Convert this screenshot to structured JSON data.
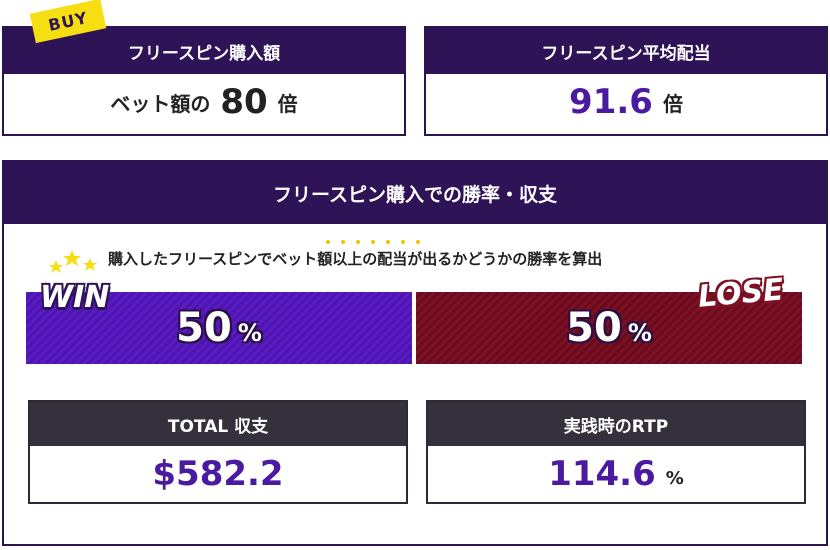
{
  "buy_card": {
    "badge": "BUY",
    "title": "フリースピン購入額",
    "label": "ベット額の",
    "value": "80",
    "unit": "倍"
  },
  "avg_card": {
    "title": "フリースピン平均配当",
    "value": "91.6",
    "unit": "倍"
  },
  "win_section": {
    "title": "フリースピン購入での勝率・収支",
    "subtitle": "購入したフリースピンでベット額以上の配当が出るかどうかの勝率を算出",
    "win": {
      "label": "WIN",
      "value": "50",
      "unit": "%"
    },
    "lose": {
      "label": "LOSE",
      "value": "50",
      "unit": "%"
    }
  },
  "total_card": {
    "title": "TOTAL 収支",
    "value": "$582.2"
  },
  "rtp_card": {
    "title": "実践時のRTP",
    "value": "114.6",
    "unit": "%"
  },
  "colors": {
    "header_purple": "#2e1457",
    "win_purple": "#5a1cc2",
    "lose_red": "#7d1024",
    "accent_text": "#4a1aa0",
    "badge_yellow": "#f5df12",
    "dark_header": "#34303c"
  }
}
